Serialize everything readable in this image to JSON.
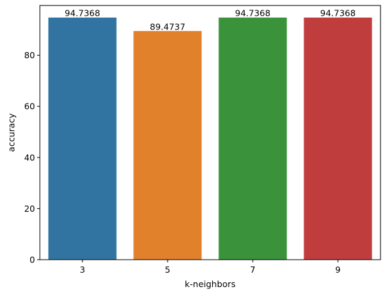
{
  "chart_data": {
    "type": "bar",
    "categories": [
      "3",
      "5",
      "7",
      "9"
    ],
    "values": [
      94.7368,
      89.4737,
      94.7368,
      94.7368
    ],
    "data_labels": [
      "94.7368",
      "89.4737",
      "94.7368",
      "94.7368"
    ],
    "colors": [
      "#3274a1",
      "#e1812c",
      "#3a923a",
      "#c03d3e"
    ],
    "xlabel": "k-neighbors",
    "ylabel": "accuracy",
    "ylim": [
      0,
      99.47
    ],
    "yticks": [
      0,
      20,
      40,
      60,
      80
    ],
    "grid": false,
    "legend": "none"
  }
}
